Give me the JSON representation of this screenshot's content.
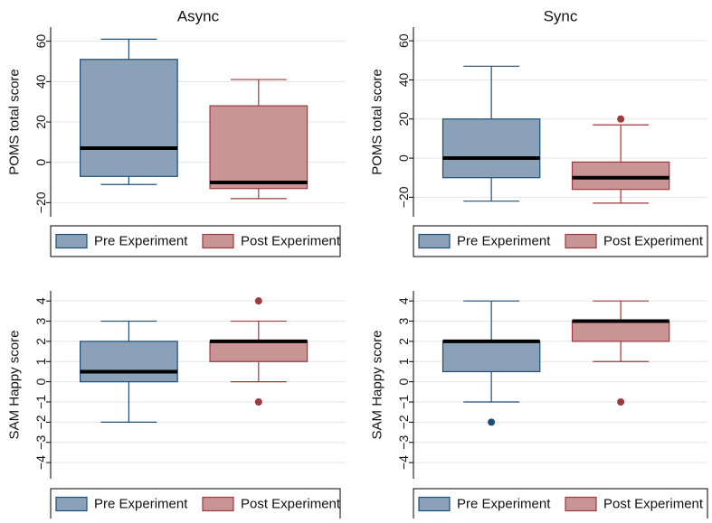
{
  "figure_title": "Boxplots of POMS and SAM Happy scores by condition",
  "colors": {
    "pre_fill": "#8aa1b8",
    "pre_stroke": "#1f4e79",
    "post_fill": "#c99496",
    "post_stroke": "#9c3a3e",
    "median": "#000000",
    "grid": "#e6e6e6",
    "outlier_pre": "#1f4e79",
    "outlier_post": "#9c3a3e"
  },
  "legend": {
    "pre": "Pre Experiment",
    "post": "Post Experiment"
  },
  "chart_data": [
    {
      "type": "box",
      "title": "Async",
      "ylabel": "POMS total score",
      "ylim": [
        -27,
        67
      ],
      "yticks": [
        -20,
        0,
        20,
        40,
        60
      ],
      "grid": true,
      "legend_position": "bottom",
      "series": [
        {
          "name": "Pre Experiment",
          "whisker_low": -11,
          "q1": -7,
          "median": 7,
          "q3": 51,
          "whisker_high": 61,
          "outliers": []
        },
        {
          "name": "Post Experiment",
          "whisker_low": -18,
          "q1": -13,
          "median": -10,
          "q3": 28,
          "whisker_high": 41,
          "outliers": []
        }
      ]
    },
    {
      "type": "box",
      "title": "Sync",
      "ylabel": "POMS total score",
      "ylim": [
        -30,
        67
      ],
      "yticks": [
        -20,
        0,
        20,
        40,
        60
      ],
      "grid": true,
      "legend_position": "bottom",
      "series": [
        {
          "name": "Pre Experiment",
          "whisker_low": -22,
          "q1": -10,
          "median": 0,
          "q3": 20,
          "whisker_high": 47,
          "outliers": []
        },
        {
          "name": "Post Experiment",
          "whisker_low": -23,
          "q1": -16,
          "median": -10,
          "q3": -2,
          "whisker_high": 17,
          "outliers": [
            20
          ]
        }
      ]
    },
    {
      "type": "box",
      "title": "",
      "ylabel": "SAM Happy score",
      "ylim": [
        -4.8,
        4.5
      ],
      "yticks": [
        -4,
        -3,
        -2,
        -1,
        0,
        1,
        2,
        3,
        4
      ],
      "grid": true,
      "legend_position": "bottom",
      "series": [
        {
          "name": "Pre Experiment",
          "whisker_low": -2,
          "q1": 0,
          "median": 0.5,
          "q3": 2,
          "whisker_high": 3,
          "outliers": []
        },
        {
          "name": "Post Experiment",
          "whisker_low": 0,
          "q1": 1,
          "median": 2,
          "q3": 2,
          "whisker_high": 3,
          "outliers": [
            4,
            -1
          ]
        }
      ]
    },
    {
      "type": "box",
      "title": "",
      "ylabel": "SAM Happy score",
      "ylim": [
        -4.8,
        4.5
      ],
      "yticks": [
        -4,
        -3,
        -2,
        -1,
        0,
        1,
        2,
        3,
        4
      ],
      "grid": true,
      "legend_position": "bottom",
      "series": [
        {
          "name": "Pre Experiment",
          "whisker_low": -1,
          "q1": 0.5,
          "median": 2,
          "q3": 2,
          "whisker_high": 4,
          "outliers": [
            -2
          ]
        },
        {
          "name": "Post Experiment",
          "whisker_low": 1,
          "q1": 2,
          "median": 3,
          "q3": 3,
          "whisker_high": 4,
          "outliers": [
            -1
          ]
        }
      ]
    }
  ]
}
